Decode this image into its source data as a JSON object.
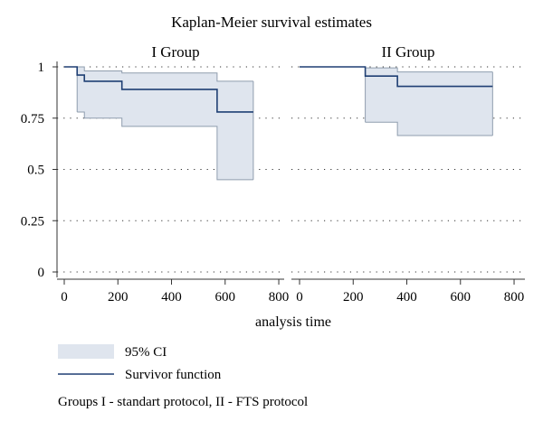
{
  "chart_data": {
    "type": "line",
    "title": "Kaplan-Meier survival estimates",
    "xlabel": "analysis time",
    "ylabel": "",
    "xlim": [
      0,
      800
    ],
    "ylim": [
      0,
      1
    ],
    "x_ticks": [
      "0",
      "200",
      "400",
      "600",
      "800"
    ],
    "y_ticks": [
      "0",
      "0.25",
      "0.5",
      "0.75",
      "1"
    ],
    "y_tick_values": [
      0,
      0.25,
      0.5,
      0.75,
      1
    ],
    "x_tick_values": [
      0,
      200,
      400,
      600,
      800
    ],
    "grid": "dotted horizontal at y ticks",
    "panels": [
      {
        "title": "I Group",
        "survival": [
          {
            "t": 0,
            "s": 1.0
          },
          {
            "t": 48,
            "s": 0.96
          },
          {
            "t": 75,
            "s": 0.93
          },
          {
            "t": 215,
            "s": 0.89
          },
          {
            "t": 570,
            "s": 0.78
          },
          {
            "t": 705,
            "s": 0.78
          }
        ],
        "ci_upper": [
          {
            "t": 48,
            "s": 1.0
          },
          {
            "t": 75,
            "s": 0.98
          },
          {
            "t": 215,
            "s": 0.97
          },
          {
            "t": 570,
            "s": 0.93
          },
          {
            "t": 705,
            "s": 0.93
          }
        ],
        "ci_lower": [
          {
            "t": 48,
            "s": 0.78
          },
          {
            "t": 75,
            "s": 0.75
          },
          {
            "t": 215,
            "s": 0.71
          },
          {
            "t": 570,
            "s": 0.45
          },
          {
            "t": 705,
            "s": 0.45
          }
        ]
      },
      {
        "title": "II Group",
        "survival": [
          {
            "t": 0,
            "s": 1.0
          },
          {
            "t": 245,
            "s": 0.955
          },
          {
            "t": 365,
            "s": 0.905
          },
          {
            "t": 720,
            "s": 0.905
          }
        ],
        "ci_upper": [
          {
            "t": 245,
            "s": 0.995
          },
          {
            "t": 365,
            "s": 0.975
          },
          {
            "t": 720,
            "s": 0.975
          }
        ],
        "ci_lower": [
          {
            "t": 245,
            "s": 0.73
          },
          {
            "t": 365,
            "s": 0.665
          },
          {
            "t": 720,
            "s": 0.665
          }
        ]
      }
    ],
    "legend": [
      {
        "label": "95% CI",
        "kind": "area"
      },
      {
        "label": "Survivor function",
        "kind": "line"
      }
    ],
    "note": "Groups I - standart protocol, II - FTS protocol"
  },
  "colors": {
    "ci_fill": "#dfe5ee",
    "ci_edge": "#8f9dae",
    "survivor_line": "#1f3f73",
    "axis": "#333333",
    "grid": "#333333"
  }
}
